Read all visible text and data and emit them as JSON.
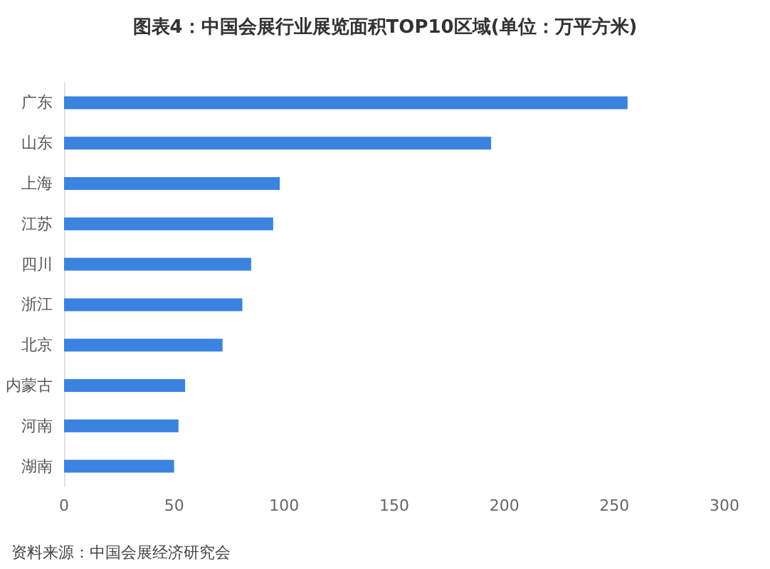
{
  "chart_data": {
    "type": "bar",
    "orientation": "horizontal",
    "title": "图表4：中国会展行业展览面积TOP10区域(单位：万平方米)",
    "categories": [
      "广东",
      "山东",
      "上海",
      "江苏",
      "四川",
      "浙江",
      "北京",
      "内蒙古",
      "河南",
      "湖南"
    ],
    "values": [
      256,
      194,
      98,
      95,
      85,
      81,
      72,
      55,
      52,
      50
    ],
    "color": "#3a83e0",
    "xlim": [
      0,
      300
    ],
    "xticks": [
      0,
      50,
      100,
      150,
      200,
      250,
      300
    ],
    "grid": false,
    "annotations": [
      "资料来源：中国会展经济研究会"
    ]
  }
}
